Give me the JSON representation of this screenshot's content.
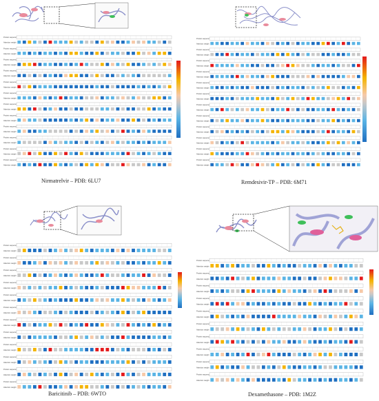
{
  "panels": [
    {
      "id": "nirmatrelvir",
      "caption": "Nirmatrelvir – PDB: 6LU7"
    },
    {
      "id": "remdesivir",
      "caption": "Remdesivir-TP – PDB: 6M71"
    },
    {
      "id": "baricitinib",
      "caption": "Baricitinib – PDB: 6WTO"
    },
    {
      "id": "dexamethasone",
      "caption": "Dexamethasone – PDB: 1M2Z"
    }
  ],
  "row_labels": {
    "sequence": "Protein sequence",
    "weight": "Attention weight"
  },
  "colors": {
    "high": "#e41a1c",
    "mid_high": "#f4b400",
    "mid": "#f6c9a8",
    "neutral": "#c8c8c8",
    "mid_low": "#5ab4e5",
    "low": "#1f6fc1"
  }
}
